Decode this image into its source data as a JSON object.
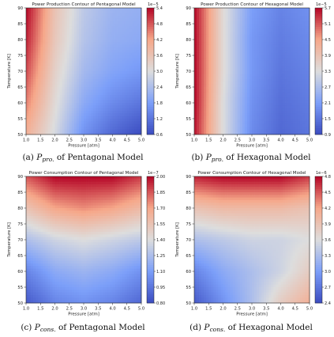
{
  "figure": {
    "panels": [
      {
        "id": "a",
        "caption": {
          "label": "(a)",
          "symbol": "P",
          "subscript": "pro.",
          "text": "of Pentagonal Model"
        },
        "chart": {
          "title": "Power Production Contour of Pentagonal Model",
          "xlabel": "Pressure [atm]",
          "ylabel": "Temperature [K]",
          "xticks": [
            "1.0",
            "1.5",
            "2.0",
            "2.5",
            "3.0",
            "3.5",
            "4.0",
            "4.5",
            "5.0"
          ],
          "yticks": [
            "50",
            "55",
            "60",
            "65",
            "70",
            "75",
            "80",
            "85",
            "90"
          ],
          "colorbar_ticks": [
            "0.6",
            "1.2",
            "1.8",
            "2.4",
            "3.0",
            "3.6",
            "4.2",
            "4.8",
            "5.4"
          ],
          "colorbar_exponent": "1e−5"
        }
      },
      {
        "id": "b",
        "caption": {
          "label": "(b)",
          "symbol": "P",
          "subscript": "pro.",
          "text": "of Hexagonal Model"
        },
        "chart": {
          "title": "Power Production Contour of Hexagonal Model",
          "xlabel": "Pressure [atm]",
          "ylabel": "Temperature [K]",
          "xticks": [
            "1.0",
            "1.5",
            "2.0",
            "2.5",
            "3.0",
            "3.5",
            "4.0",
            "4.5",
            "5.0"
          ],
          "yticks": [
            "50",
            "55",
            "60",
            "65",
            "70",
            "75",
            "80",
            "85",
            "90"
          ],
          "colorbar_ticks": [
            "0.9",
            "1.5",
            "2.1",
            "2.7",
            "3.3",
            "3.9",
            "4.5",
            "5.1",
            "5.7"
          ],
          "colorbar_exponent": "1e−5"
        }
      },
      {
        "id": "c",
        "caption": {
          "label": "(c)",
          "symbol": "P",
          "subscript": "cons.",
          "text": "of Pentagonal Model"
        },
        "chart": {
          "title": "Power Consumption Contour of Pentagonal Model",
          "xlabel": "Pressure [atm]",
          "ylabel": "Temperature [K]",
          "xticks": [
            "1.0",
            "1.5",
            "2.0",
            "2.5",
            "3.0",
            "3.5",
            "4.0",
            "4.5",
            "5.0"
          ],
          "yticks": [
            "50",
            "55",
            "60",
            "65",
            "70",
            "75",
            "80",
            "85",
            "90"
          ],
          "colorbar_ticks": [
            "0.80",
            "0.95",
            "1.10",
            "1.25",
            "1.40",
            "1.55",
            "1.70",
            "1.85",
            "2.00"
          ],
          "colorbar_exponent": "1e−7"
        }
      },
      {
        "id": "d",
        "caption": {
          "label": "(d)",
          "symbol": "P",
          "subscript": "cons.",
          "text": "of Hexagonal Model"
        },
        "chart": {
          "title": "Power Consumption Contour of Hexagonal Model",
          "xlabel": "Pressure [atm]",
          "ylabel": "Temperature [K]",
          "xticks": [
            "1.0",
            "1.5",
            "2.0",
            "2.5",
            "3.0",
            "3.5",
            "4.0",
            "4.5",
            "5.0"
          ],
          "yticks": [
            "50",
            "55",
            "60",
            "65",
            "70",
            "75",
            "80",
            "85",
            "90"
          ],
          "colorbar_ticks": [
            "2.4",
            "2.7",
            "3.0",
            "3.3",
            "3.6",
            "3.9",
            "4.2",
            "4.5",
            "4.8"
          ],
          "colorbar_exponent": "1e−6"
        }
      }
    ]
  },
  "chart_data": [
    {
      "type": "heatmap",
      "title": "Power Production Contour of Pentagonal Model",
      "xlabel": "Pressure [atm]",
      "ylabel": "Temperature [K]",
      "xlim": [
        1.0,
        5.0
      ],
      "ylim": [
        50,
        90
      ],
      "colormap": "coolwarm",
      "value_range": [
        0.6,
        5.4
      ],
      "value_scale": "1e-5",
      "x": [
        1.0,
        2.0,
        3.0,
        4.0,
        5.0
      ],
      "y": [
        50,
        60,
        70,
        80,
        90
      ],
      "z": [
        [
          4.0,
          2.9,
          1.6,
          1.0,
          0.6
        ],
        [
          4.5,
          3.1,
          2.0,
          1.5,
          1.2
        ],
        [
          4.9,
          3.3,
          2.3,
          1.9,
          1.7
        ],
        [
          5.2,
          3.5,
          2.5,
          2.1,
          2.0
        ],
        [
          5.4,
          3.6,
          2.6,
          2.2,
          2.1
        ]
      ]
    },
    {
      "type": "heatmap",
      "title": "Power Production Contour of Hexagonal Model",
      "xlabel": "Pressure [atm]",
      "ylabel": "Temperature [K]",
      "xlim": [
        1.0,
        5.0
      ],
      "ylim": [
        50,
        90
      ],
      "colormap": "coolwarm",
      "value_range": [
        0.9,
        5.7
      ],
      "value_scale": "1e-5",
      "x": [
        1.0,
        2.0,
        3.0,
        4.0,
        5.0
      ],
      "y": [
        50,
        60,
        70,
        80,
        90
      ],
      "z": [
        [
          5.6,
          3.3,
          1.8,
          1.3,
          1.5
        ],
        [
          5.7,
          3.3,
          1.9,
          1.4,
          1.6
        ],
        [
          5.7,
          3.4,
          2.0,
          1.5,
          1.7
        ],
        [
          5.7,
          3.4,
          2.0,
          1.6,
          1.8
        ],
        [
          5.7,
          3.4,
          2.1,
          1.7,
          1.9
        ]
      ]
    },
    {
      "type": "heatmap",
      "title": "Power Consumption Contour of Pentagonal Model",
      "xlabel": "Pressure [atm]",
      "ylabel": "Temperature [K]",
      "xlim": [
        1.0,
        5.0
      ],
      "ylim": [
        50,
        90
      ],
      "colormap": "coolwarm",
      "value_range": [
        0.8,
        2.0
      ],
      "value_scale": "1e-7",
      "x": [
        1.0,
        2.0,
        3.0,
        4.0,
        5.0
      ],
      "y": [
        50,
        60,
        70,
        80,
        90
      ],
      "z": [
        [
          0.85,
          1.0,
          1.05,
          1.0,
          0.9
        ],
        [
          1.0,
          1.15,
          1.2,
          1.15,
          1.05
        ],
        [
          1.25,
          1.35,
          1.4,
          1.35,
          1.3
        ],
        [
          1.55,
          1.7,
          1.75,
          1.7,
          1.6
        ],
        [
          1.85,
          2.0,
          2.0,
          2.0,
          1.9
        ]
      ]
    },
    {
      "type": "heatmap",
      "title": "Power Consumption Contour of Hexagonal Model",
      "xlabel": "Pressure [atm]",
      "ylabel": "Temperature [K]",
      "xlim": [
        1.0,
        5.0
      ],
      "ylim": [
        50,
        90
      ],
      "colormap": "coolwarm",
      "value_range": [
        2.4,
        4.8
      ],
      "value_scale": "1e-6",
      "x": [
        1.0,
        2.0,
        3.0,
        4.0,
        5.0
      ],
      "y": [
        50,
        60,
        70,
        80,
        90
      ],
      "z": [
        [
          2.5,
          2.9,
          3.3,
          3.8,
          4.1
        ],
        [
          2.8,
          3.1,
          3.3,
          3.5,
          3.8
        ],
        [
          3.3,
          3.4,
          3.5,
          3.5,
          3.6
        ],
        [
          3.9,
          4.0,
          4.0,
          4.0,
          3.9
        ],
        [
          4.7,
          4.8,
          4.8,
          4.8,
          4.6
        ]
      ]
    }
  ]
}
